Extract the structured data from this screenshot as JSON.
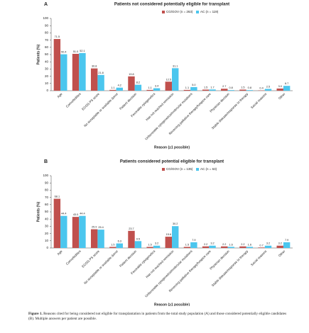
{
  "chart_data": [
    {
      "type": "bar",
      "label": "A",
      "title": "Patients not considered potentially eligible for transplant",
      "y_label": "Patients (%)",
      "x_label": "Reason (≥1 possible)",
      "categories": [
        "Age",
        "Comorbidities",
        "ECOG PS score",
        "No acceptable or available donor",
        "Patient decision",
        "Favorable cytogenetics",
        "Has not reached remission",
        "Unfavorable cytogenetics/molecular mutations",
        "Receiving palliative therapy/hospice care",
        "Physician decision",
        "Stable disease/response to therapy",
        "Social reasons",
        "Other"
      ],
      "series": [
        {
          "name": "CG/GOV (n = 263)",
          "color": "#c0504d",
          "values": [
            71.5,
            51.0,
            30.8,
            1.1,
            19.8,
            1.1,
            12.5,
            1.1,
            1.5,
            2.7,
            1.5,
            0.4,
            3.0
          ],
          "value_labels": [
            "71.5",
            "51.0",
            "30.8",
            "1.1",
            "19.8",
            "1.1",
            "12.5",
            "1.1",
            "1.5",
            "2.7",
            "1.5",
            "0.4",
            "3.0"
          ]
        },
        {
          "name": "AC (n = 119)",
          "color": "#4bc6ee",
          "values": [
            50.4,
            52.1,
            21.8,
            4.2,
            8.2,
            3.4,
            31.1,
            5.0,
            1.7,
            0.8,
            0.8,
            2.5,
            6.7
          ],
          "value_labels": [
            "50.4",
            "52.1",
            "21.8",
            "4.2",
            "8.2",
            "3.4",
            "31.1",
            "5.0",
            "1.7",
            "0.8",
            "0.8",
            "2.5",
            "6.7"
          ]
        }
      ],
      "ylim": [
        0,
        100
      ],
      "yticks": [
        0,
        10,
        20,
        30,
        40,
        50,
        60,
        70,
        80,
        90,
        100
      ]
    },
    {
      "type": "bar",
      "label": "B",
      "title": "Patients considered potential eligible for transplant",
      "y_label": "Patients (%)",
      "x_label": "Reason (≥1 possible)",
      "categories": [
        "Age",
        "Comorbidities",
        "ECOG PS score",
        "No acceptable or available donor",
        "Patient decision",
        "Favorable cytogenetics",
        "Has not reached remission",
        "Unfavorable cytogenetics/molecular mutations",
        "Receiving palliative therapy/hospice care",
        "Physician decision",
        "Stable disease/response to therapy",
        "Social reasons",
        "Other"
      ],
      "series": [
        {
          "name": "CG/GOV (n = 135)",
          "color": "#c0504d",
          "values": [
            68.1,
            43.0,
            25.9,
            1.5,
            23.7,
            1.5,
            15.6,
            1.5,
            2.2,
            2.2,
            2.2,
            0.7,
            3.2
          ],
          "value_labels": [
            "68.1",
            "43.0",
            "25.9",
            "1.5",
            "23.7",
            "1.5",
            "15.6",
            "1.5",
            "2.2",
            "2.2",
            "2.2",
            "0.7",
            "3.2"
          ]
        },
        {
          "name": "AC (n = 63)",
          "color": "#4bc6ee",
          "values": [
            44.4,
            44.4,
            25.4,
            6.3,
            9.5,
            3.2,
            30.2,
            7.9,
            3.2,
            1.6,
            1.6,
            3.2,
            7.9
          ],
          "value_labels": [
            "44.4",
            "44.4",
            "25.4",
            "6.3",
            "9.5",
            "3.2",
            "30.2",
            "7.9",
            "3.2",
            "1.6",
            "1.6",
            "3.2",
            "7.9"
          ]
        }
      ],
      "ylim": [
        0,
        100
      ],
      "yticks": [
        0,
        10,
        20,
        30,
        40,
        50,
        60,
        70,
        80,
        90,
        100
      ]
    }
  ],
  "caption_label": "Figure 1.",
  "caption": "Reasons cited for being considered not eligible for transplantation in patients from the total study population (A) and those considered potentially eligible candidates (B). Multiple answers per patient are possible."
}
